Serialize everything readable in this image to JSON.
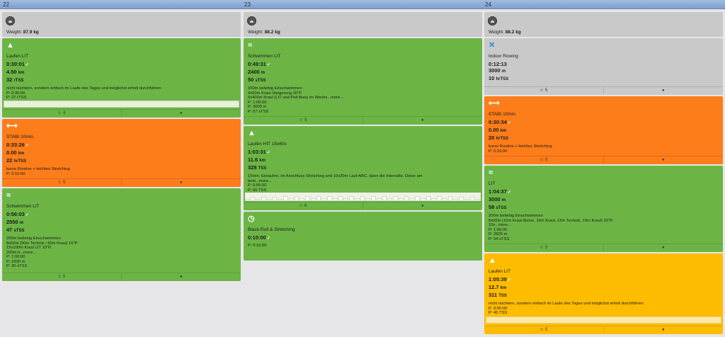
{
  "days": [
    {
      "number": "22",
      "weight_label": "Weight:",
      "weight_value": "87.9 kg",
      "workouts": [
        {
          "icon": "running-shoe-icon",
          "title": "Laufen LIT",
          "duration": "0:30:01",
          "distance_value": "4.50",
          "distance_unit": "km",
          "load_value": "32",
          "load_unit": "rTSS",
          "description": "nicht nüchtern, sondern einfach im Laufe des Tages und möglichst erholt durchführen",
          "plan_lines": [
            "P: 0:30:00",
            "P: 27 rTSS"
          ],
          "smiley": "4"
        },
        {
          "icon": "strength-icon",
          "title": "STABI 10min.",
          "duration": "0:33:26",
          "distance_value": "0.00",
          "distance_unit": "km",
          "load_value": "22",
          "load_unit": "hrTSS",
          "description": "kurze Routine + leichtes Stretching",
          "plan_lines": [
            "P: 0:10:00"
          ],
          "smiley": "5"
        },
        {
          "icon": "swim-icon",
          "title": "Schwimmen LIT",
          "duration": "0:56:03",
          "distance_value": "2550",
          "distance_unit": "m",
          "load_value": "47",
          "load_unit": "sTSS",
          "description_lines": [
            "200m beliebig Einschwimmen",
            "8x50m (50m Technik / 50m Kraul) 15\"P",
            "15x100m Kraul LIT 10\"P,",
            "200m b...more..."
          ],
          "plan_lines": [
            "P: 1:00:00",
            "P: 2300 m",
            "P: 30 sTSS"
          ],
          "smiley": "5"
        }
      ]
    },
    {
      "number": "23",
      "weight_label": "Weight:",
      "weight_value": "88.2 kg",
      "workouts": [
        {
          "icon": "swim-icon",
          "title": "Schwimmen LIT",
          "duration": "0:49:31",
          "distance_value": "2400",
          "distance_unit": "m",
          "load_value": "50",
          "load_unit": "sTSS",
          "description_lines": [
            "200m beliebig Einschwimmen",
            "4x50m Kraul Steigerung 30\"P",
            "5x400m Kraul (LIT und Pull-Buoy im Wechs...more..."
          ],
          "plan_lines": [
            "P: 1:00:00",
            "P: 3000 m",
            "P: 67 sTSS"
          ],
          "smiley": "5"
        },
        {
          "icon": "running-shoe-icon",
          "title": "Laufen HIT 15x60s",
          "duration": "1:03:31",
          "distance_value": "11.6",
          "distance_unit": "km",
          "load_value": "328",
          "load_unit": "TSS",
          "description_lines": [
            "15min. Einlaufen, im Anschluss Stretching und 10x20m Lauf-ABC, dann die Intervalle. Diese am",
            "best...more..."
          ],
          "plan_lines": [
            "P: 0:55:00",
            "P: 66 TSS"
          ],
          "smiley": "6"
        },
        {
          "icon": "stopwatch-icon",
          "title": "Black-Roll & Stretching",
          "duration": "0:10:00",
          "plan_lines": [
            "P: 0:10:00"
          ]
        }
      ]
    },
    {
      "number": "24",
      "weight_label": "Weight:",
      "weight_value": "88.2 kg",
      "workouts": [
        {
          "icon": "rowing-icon",
          "title": "Indoor Rowing",
          "duration": "0:12:13",
          "distance_value": "3000",
          "distance_unit": "m",
          "load_value": "10",
          "load_unit": "hrTSS",
          "smiley": "5"
        },
        {
          "icon": "strength-icon",
          "title": "STABI 10min.",
          "duration": "0:30:34",
          "distance_value": "0.00",
          "distance_unit": "km",
          "load_value": "20",
          "load_unit": "hrTSS",
          "description": "kurze Routine + leichtes Stretching",
          "plan_lines": [
            "P: 0:10:00"
          ],
          "smiley": "5"
        },
        {
          "icon": "swim-icon",
          "title": "LIT",
          "duration": "1:04:37",
          "distance_value": "3000",
          "distance_unit": "m",
          "load_value": "58",
          "load_unit": "sTSS",
          "description_lines": [
            "200m beliebig Einschwimmen",
            "8x50m (15m Kraul-Beine, 10m Kraul, 15m Technik, 10m Kraul) 20\"P,",
            "10x...more..."
          ],
          "plan_lines": [
            "P: 1:00:00",
            "P: 2800 m",
            "P: 54 sTSS"
          ],
          "smiley": "5"
        },
        {
          "icon": "running-shoe-icon",
          "title": "Laufen LIT",
          "duration": "1:05:39",
          "distance_value": "12.7",
          "distance_unit": "km",
          "load_value": "311",
          "load_unit": "TSS",
          "description": "nicht nüchtern, sondern einfach im Laufe des Tages und möglichst erholt durchführen",
          "plan_lines": [
            "P: 0:50:00",
            "P: 45 TSS"
          ],
          "smiley": "5"
        }
      ]
    }
  ],
  "interval_levels": [
    0.25,
    0.5,
    0.25,
    0.5,
    0.25,
    0.5,
    0.25,
    0.6,
    0.3,
    0.6,
    0.3,
    0.6,
    0.3,
    0.6,
    0.3,
    0.6,
    0.3,
    0.6,
    0.3,
    0.6,
    0.3,
    0.6,
    0.3,
    0.6,
    0.3,
    0.6,
    0.3,
    0.6,
    0.3,
    0.6,
    0.3,
    0.6,
    0.3,
    0.6,
    0.3,
    0.6,
    0.3,
    0.6,
    0.25,
    0.5,
    0.25,
    0.5,
    0.25
  ],
  "icons": {
    "smiley": "smiley-icon",
    "comments": "comments-icon"
  },
  "colors": {
    "green": "#6cb545",
    "orange": "#fc7d1a",
    "grey": "#c9c9c9",
    "yellow": "#fdbc00"
  }
}
